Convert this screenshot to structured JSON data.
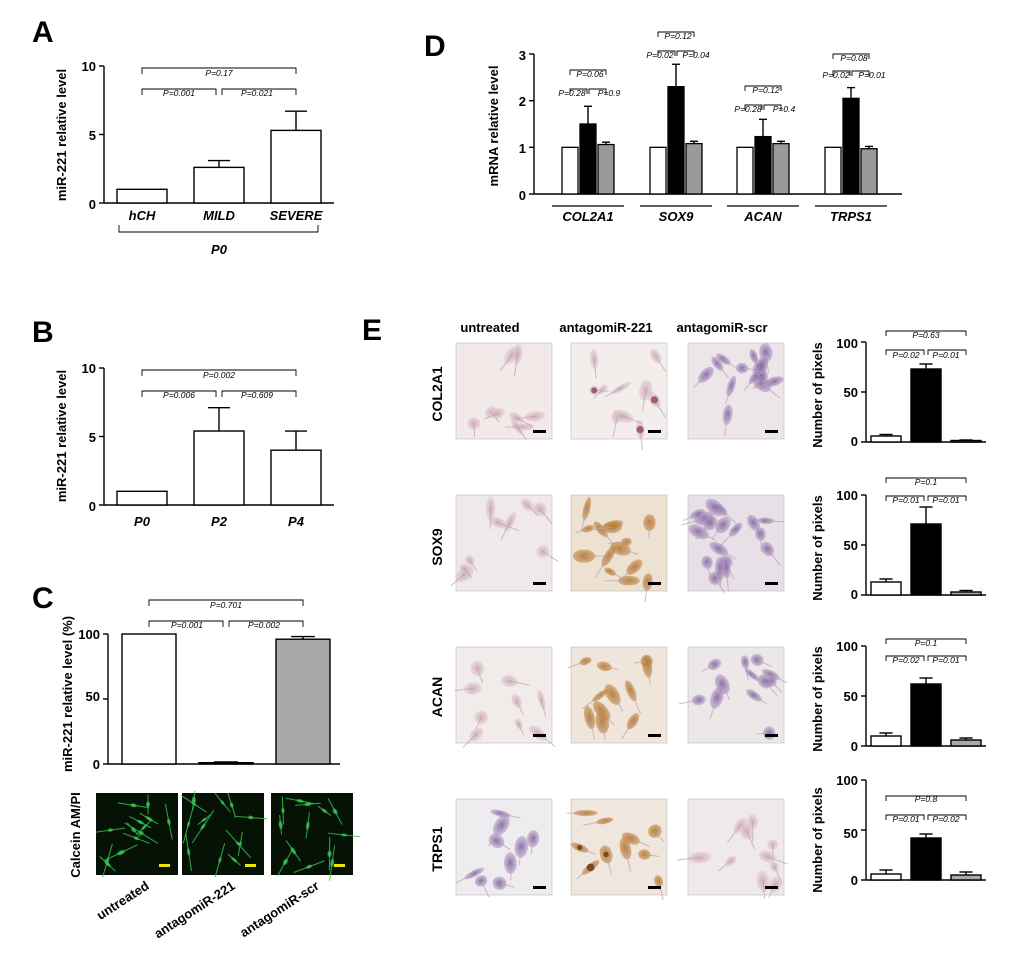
{
  "panels": {
    "A": "A",
    "B": "B",
    "C": "C",
    "D": "D",
    "E": "E"
  },
  "colors": {
    "control": "#ffffff",
    "antagomir221": "#000000",
    "scr": "#a9a9a9",
    "scrD": "#9a9a9a",
    "calcein": "#1fa83a",
    "scalebar_yellow": "#f2e600",
    "brown_stain": "#a8722f",
    "purple_stain": "#8f78a8"
  },
  "chart_data": [
    {
      "id": "A",
      "type": "bar",
      "ylabel": "miR-221 relative level",
      "ylim": [
        0,
        10
      ],
      "yticks": [
        "0",
        "5",
        "10"
      ],
      "categories": [
        "hCH",
        "MILD",
        "SEVERE"
      ],
      "values": [
        1.0,
        2.6,
        5.3
      ],
      "errors": [
        0,
        0.5,
        1.4
      ],
      "group_label": "P0",
      "comparisons": [
        "P=0.001",
        "P=0.021",
        "P=0.17"
      ]
    },
    {
      "id": "B",
      "type": "bar",
      "ylabel": "miR-221 relative level",
      "ylim": [
        0,
        10
      ],
      "yticks": [
        "0",
        "5",
        "10"
      ],
      "categories": [
        "P0",
        "P2",
        "P4"
      ],
      "values": [
        1.0,
        5.4,
        4.0
      ],
      "errors": [
        0,
        1.7,
        1.4
      ],
      "comparisons": [
        "P=0.006",
        "P=0.609",
        "P=0.002"
      ]
    },
    {
      "id": "C",
      "type": "bar",
      "ylabel": "miR-221 relative level (%)",
      "ylim": [
        0,
        100
      ],
      "yticks": [
        "0",
        "50",
        "100"
      ],
      "categories": [
        "untreated",
        "antagomiR-221",
        "antagomiR-scr"
      ],
      "values": [
        100,
        1,
        96
      ],
      "errors": [
        0,
        0.6,
        2.0
      ],
      "comparisons": [
        "P=0.001",
        "P=0.002",
        "P=0.701"
      ],
      "image_row_label": "Calcein AM/PI"
    },
    {
      "id": "D",
      "type": "bar",
      "ylabel": "mRNA relative level",
      "ylim": [
        0,
        3
      ],
      "yticks": [
        "0",
        "1",
        "2",
        "3"
      ],
      "categories": [
        "COL2A1",
        "SOX9",
        "ACAN",
        "TRPS1"
      ],
      "series": [
        {
          "values": [
            1.0,
            1.0,
            1.0,
            1.0
          ],
          "errors": [
            0,
            0,
            0,
            0
          ]
        },
        {
          "values": [
            1.5,
            2.3,
            1.23,
            2.05
          ],
          "errors": [
            0.38,
            0.48,
            0.37,
            0.23
          ]
        },
        {
          "values": [
            1.06,
            1.08,
            1.08,
            0.97
          ],
          "errors": [
            0.05,
            0.05,
            0.05,
            0.05
          ]
        }
      ],
      "comparisons": [
        [
          "P=0.28",
          "P=0.9",
          "P=0.06"
        ],
        [
          "P=0.02",
          "P=0.04",
          "P=0.12"
        ],
        [
          "P=0.28",
          "P=0.4",
          "P=0.12"
        ],
        [
          "P=0.02",
          "P=0.01",
          "P=0.08"
        ]
      ]
    },
    {
      "id": "E",
      "type": "bar",
      "ylabel": "Number of pixels",
      "ylim": [
        0,
        100
      ],
      "yticks": [
        "0",
        "50",
        "100"
      ],
      "columns": [
        "untreated",
        "antagomiR-221",
        "antagomiR-scr"
      ],
      "rows": [
        {
          "label": "COL2A1",
          "values": [
            6,
            73,
            1.5
          ],
          "errors": [
            1.5,
            5,
            0.5
          ],
          "comparisons": [
            "P=0.02",
            "P=0.01",
            "P=0.63"
          ]
        },
        {
          "label": "SOX9",
          "values": [
            13,
            71,
            3
          ],
          "errors": [
            3,
            17,
            1.5
          ],
          "comparisons": [
            "P=0.01",
            "P=0.01",
            "P=0.1"
          ]
        },
        {
          "label": "ACAN",
          "values": [
            10,
            62,
            6
          ],
          "errors": [
            3,
            6,
            2
          ],
          "comparisons": [
            "P=0.02",
            "P=0.01",
            "P=0.1"
          ]
        },
        {
          "label": "TRPS1",
          "values": [
            6,
            42,
            5
          ],
          "errors": [
            4,
            4,
            3
          ],
          "comparisons": [
            "P=0.01",
            "P=0.02",
            "P=0.8"
          ]
        }
      ]
    }
  ]
}
